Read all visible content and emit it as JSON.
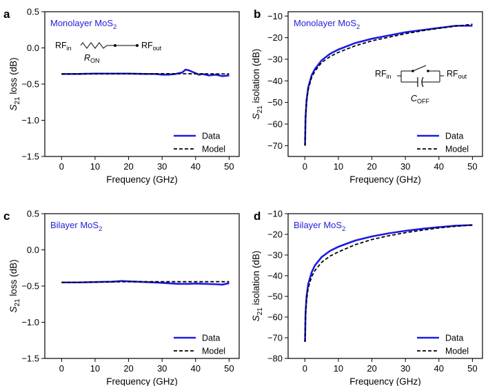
{
  "colors": {
    "data": "#1a1ae6",
    "model": "#000000",
    "annotation": "#1f1fd6"
  },
  "chart_data": [
    {
      "panel": "a",
      "type": "line",
      "title": "",
      "annotation": {
        "material": "Monolayer MoS",
        "subscript": "2"
      },
      "xlabel": "Frequency (GHz)",
      "ylabel": {
        "main": "S",
        "sub": "21",
        "rest": " loss (dB)"
      },
      "xlim": [
        -5,
        53
      ],
      "ylim": [
        -1.5,
        0.5
      ],
      "xticks": [
        0,
        10,
        20,
        30,
        40,
        50
      ],
      "yticks": [
        0.5,
        0.0,
        -0.5,
        -1.0,
        -1.5
      ],
      "ytick_labels": [
        "0.5",
        "0.0",
        "−0.5",
        "−1.0",
        "−1.5"
      ],
      "legend": {
        "position": "bottom-right",
        "data": "Data",
        "model": "Model"
      },
      "inset": {
        "kind": "resistor",
        "rf_in": "RF",
        "rf_in_sub": "in",
        "rf_out": "RF",
        "rf_out_sub": "out",
        "element": "R",
        "element_sub": "ON"
      },
      "series": [
        {
          "name": "Data",
          "style": "solid",
          "x": [
            0,
            5,
            10,
            15,
            20,
            25,
            28,
            30,
            32,
            34,
            36,
            37,
            38,
            39,
            40,
            41,
            42,
            44,
            46,
            48,
            50
          ],
          "y": [
            -0.36,
            -0.36,
            -0.355,
            -0.355,
            -0.355,
            -0.36,
            -0.36,
            -0.37,
            -0.37,
            -0.36,
            -0.34,
            -0.3,
            -0.31,
            -0.33,
            -0.35,
            -0.37,
            -0.36,
            -0.38,
            -0.37,
            -0.39,
            -0.38
          ]
        },
        {
          "name": "Model",
          "style": "dashed",
          "x": [
            0,
            10,
            20,
            30,
            40,
            50
          ],
          "y": [
            -0.36,
            -0.358,
            -0.356,
            -0.356,
            -0.358,
            -0.36
          ]
        }
      ]
    },
    {
      "panel": "b",
      "type": "line",
      "title": "",
      "annotation": {
        "material": "Monolayer MoS",
        "subscript": "2"
      },
      "xlabel": "Frequency (GHz)",
      "ylabel": {
        "main": "S",
        "sub": "21",
        "rest": " isolation (dB)"
      },
      "xlim": [
        -5,
        53
      ],
      "ylim": [
        -75,
        -8
      ],
      "xticks": [
        0,
        10,
        20,
        30,
        40,
        50
      ],
      "yticks": [
        -10,
        -20,
        -30,
        -40,
        -50,
        -60,
        -70
      ],
      "ytick_labels": [
        "−10",
        "−20",
        "−30",
        "−40",
        "−50",
        "−60",
        "−70"
      ],
      "legend": {
        "position": "bottom-right",
        "data": "Data",
        "model": "Model"
      },
      "inset": {
        "kind": "capacitor",
        "rf_in": "RF",
        "rf_in_sub": "in",
        "rf_out": "RF",
        "rf_out_sub": "out",
        "element": "C",
        "element_sub": "OFF"
      },
      "series": [
        {
          "name": "Data",
          "style": "solid",
          "x": [
            0.05,
            0.2,
            0.5,
            1,
            2,
            3,
            5,
            7.5,
            10,
            15,
            20,
            25,
            30,
            35,
            40,
            45,
            50
          ],
          "y": [
            -70,
            -57,
            -49,
            -43,
            -37.5,
            -34.5,
            -30.5,
            -27.5,
            -25.5,
            -22.5,
            -20.5,
            -19,
            -17.5,
            -16.5,
            -15.5,
            -14.5,
            -14.5
          ]
        },
        {
          "name": "Model",
          "style": "dashed",
          "x": [
            0.05,
            0.2,
            0.5,
            1,
            2,
            3,
            5,
            7.5,
            10,
            15,
            20,
            25,
            30,
            35,
            40,
            45,
            50
          ],
          "y": [
            -70,
            -58,
            -50,
            -44,
            -38.5,
            -35.5,
            -31.5,
            -28.8,
            -26.8,
            -23.8,
            -21.5,
            -19.8,
            -18.2,
            -16.8,
            -15.7,
            -14.7,
            -13.8
          ]
        }
      ]
    },
    {
      "panel": "c",
      "type": "line",
      "title": "",
      "annotation": {
        "material": "Bilayer MoS",
        "subscript": "2"
      },
      "xlabel": "Frequency (GHz)",
      "ylabel": {
        "main": "S",
        "sub": "21",
        "rest": " loss (dB)"
      },
      "xlim": [
        -5,
        53
      ],
      "ylim": [
        -1.5,
        0.5
      ],
      "xticks": [
        0,
        10,
        20,
        30,
        40,
        50
      ],
      "yticks": [
        0.5,
        0.0,
        -0.5,
        -1.0,
        -1.5
      ],
      "ytick_labels": [
        "0.5",
        "0.0",
        "−0.5",
        "−1.0",
        "−1.5"
      ],
      "legend": {
        "position": "bottom-right",
        "data": "Data",
        "model": "Model"
      },
      "series": [
        {
          "name": "Data",
          "style": "solid",
          "x": [
            0,
            5,
            10,
            15,
            18,
            20,
            25,
            30,
            33,
            35,
            38,
            40,
            43,
            46,
            48,
            50
          ],
          "y": [
            -0.45,
            -0.45,
            -0.445,
            -0.44,
            -0.43,
            -0.435,
            -0.445,
            -0.455,
            -0.465,
            -0.47,
            -0.47,
            -0.465,
            -0.47,
            -0.475,
            -0.48,
            -0.46
          ]
        },
        {
          "name": "Model",
          "style": "dashed",
          "x": [
            0,
            10,
            20,
            30,
            40,
            50
          ],
          "y": [
            -0.45,
            -0.445,
            -0.44,
            -0.44,
            -0.44,
            -0.44
          ]
        }
      ]
    },
    {
      "panel": "d",
      "type": "line",
      "title": "",
      "annotation": {
        "material": "Bilayer MoS",
        "subscript": "2"
      },
      "xlabel": "Frequency (GHz)",
      "ylabel": {
        "main": "S",
        "sub": "21",
        "rest": " isolation (dB)"
      },
      "xlim": [
        -5,
        53
      ],
      "ylim": [
        -80,
        -10
      ],
      "xticks": [
        0,
        10,
        20,
        30,
        40,
        50
      ],
      "yticks": [
        -10,
        -20,
        -30,
        -40,
        -50,
        -60,
        -70,
        -80
      ],
      "ytick_labels": [
        "−10",
        "−20",
        "−30",
        "−40",
        "−50",
        "−60",
        "−70",
        "−80"
      ],
      "legend": {
        "position": "bottom-right",
        "data": "Data",
        "model": "Model"
      },
      "series": [
        {
          "name": "Data",
          "style": "solid",
          "x": [
            0.05,
            0.2,
            0.5,
            1,
            2,
            3,
            5,
            7.5,
            10,
            15,
            20,
            25,
            30,
            35,
            40,
            45,
            50
          ],
          "y": [
            -72,
            -58,
            -50,
            -44,
            -38.5,
            -35,
            -31,
            -28,
            -26,
            -23,
            -21,
            -19.5,
            -18.3,
            -17.3,
            -16.5,
            -15.8,
            -15.5
          ]
        },
        {
          "name": "Model",
          "style": "dashed",
          "x": [
            0.05,
            0.2,
            0.5,
            1,
            2,
            3,
            5,
            7.5,
            10,
            15,
            20,
            25,
            30,
            35,
            40,
            45,
            50
          ],
          "y": [
            -72,
            -60,
            -52,
            -46,
            -40.5,
            -37.5,
            -33.5,
            -30.5,
            -28.5,
            -25,
            -22.5,
            -20.7,
            -19.2,
            -18,
            -16.9,
            -16.1,
            -15.5
          ]
        }
      ]
    }
  ]
}
